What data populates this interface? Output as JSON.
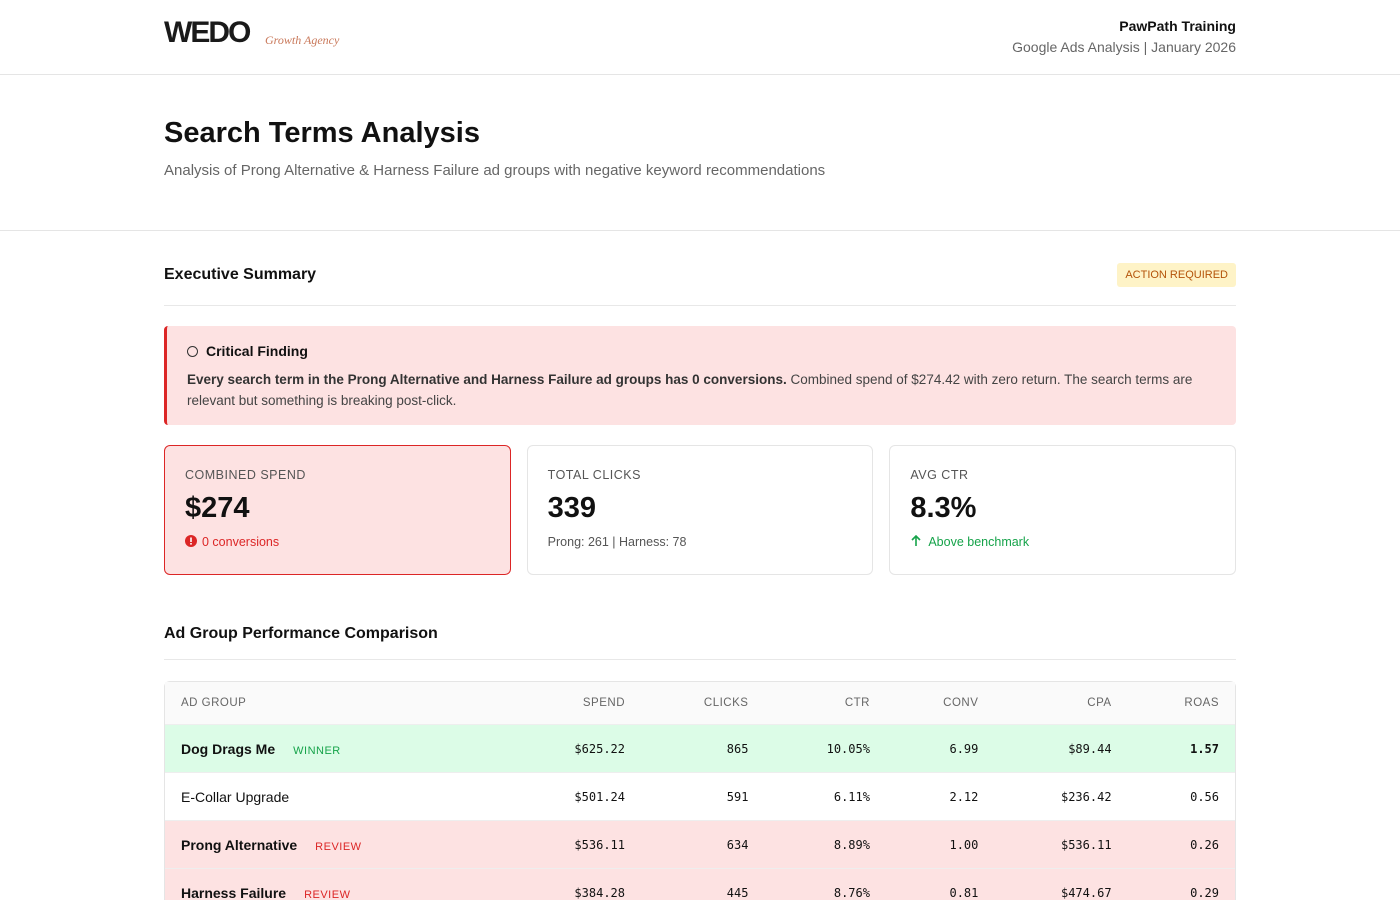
{
  "header": {
    "logo": "WEDO",
    "tagline": "Growth Agency",
    "client": "PawPath Training",
    "meta": "Google Ads Analysis | January 2026"
  },
  "hero": {
    "title": "Search Terms Analysis",
    "subtitle": "Analysis of Prong Alternative & Harness Failure ad groups with negative keyword recommendations"
  },
  "summary": {
    "title": "Executive Summary",
    "badge": "ACTION REQUIRED",
    "alert": {
      "title": "Critical Finding",
      "bold": "Every search term in the Prong Alternative and Harness Failure ad groups has 0 conversions.",
      "text": "Combined spend of $274.42 with zero return. The search terms are relevant but something is breaking post-click."
    },
    "metrics": [
      {
        "label": "COMBINED SPEND",
        "value": "$274",
        "note": "0 conversions"
      },
      {
        "label": "TOTAL CLICKS",
        "value": "339",
        "note": "Prong: 261 | Harness: 78"
      },
      {
        "label": "AVG CTR",
        "value": "8.3%",
        "note": "Above benchmark"
      }
    ]
  },
  "comparison": {
    "title": "Ad Group Performance Comparison",
    "table": {
      "columns": [
        "AD GROUP",
        "SPEND",
        "CLICKS",
        "CTR",
        "CONV",
        "CPA",
        "ROAS"
      ],
      "rows": [
        {
          "name": "Dog Drags Me",
          "tag": "WINNER",
          "cells": [
            "$625.22",
            "865",
            "10.05%",
            "6.99",
            "$89.44",
            "1.57"
          ]
        },
        {
          "name": "E-Collar Upgrade",
          "cells": [
            "$501.24",
            "591",
            "6.11%",
            "2.12",
            "$236.42",
            "0.56"
          ]
        },
        {
          "name": "Prong Alternative",
          "tag": "REVIEW",
          "cells": [
            "$536.11",
            "634",
            "8.89%",
            "1.00",
            "$536.11",
            "0.26"
          ]
        },
        {
          "name": "Harness Failure",
          "tag": "REVIEW",
          "cells": [
            "$384.28",
            "445",
            "8.76%",
            "0.81",
            "$474.67",
            "0.29"
          ]
        }
      ]
    }
  }
}
